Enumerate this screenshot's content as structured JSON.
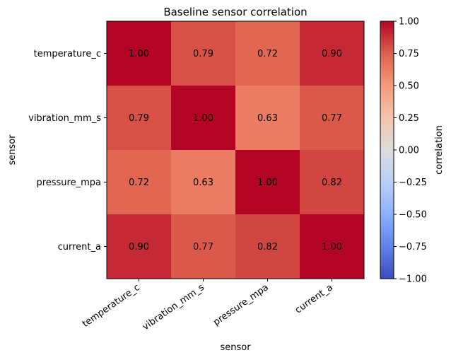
{
  "chart_data": {
    "type": "heatmap",
    "title": "Baseline sensor correlation",
    "xlabel": "sensor",
    "ylabel": "sensor",
    "x_categories": [
      "temperature_c",
      "vibration_mm_s",
      "pressure_mpa",
      "current_a"
    ],
    "y_categories": [
      "temperature_c",
      "vibration_mm_s",
      "pressure_mpa",
      "current_a"
    ],
    "values": [
      [
        1.0,
        0.79,
        0.72,
        0.9
      ],
      [
        0.79,
        1.0,
        0.63,
        0.77
      ],
      [
        0.72,
        0.63,
        1.0,
        0.82
      ],
      [
        0.9,
        0.77,
        0.82,
        1.0
      ]
    ],
    "value_labels": [
      [
        "1.00",
        "0.79",
        "0.72",
        "0.90"
      ],
      [
        "0.79",
        "1.00",
        "0.63",
        "0.77"
      ],
      [
        "0.72",
        "0.63",
        "1.00",
        "0.82"
      ],
      [
        "0.90",
        "0.77",
        "0.82",
        "1.00"
      ]
    ],
    "colormap": "coolwarm",
    "vmin": -1.0,
    "vmax": 1.0,
    "colorbar": {
      "label": "correlation",
      "ticks": [
        1.0,
        0.75,
        0.5,
        0.25,
        0.0,
        -0.25,
        -0.5,
        -0.75,
        -1.0
      ],
      "tick_labels": [
        "1.00",
        "0.75",
        "0.50",
        "0.25",
        "0.00",
        "−0.25",
        "−0.50",
        "−0.75",
        "−1.00"
      ]
    },
    "grid": false
  }
}
